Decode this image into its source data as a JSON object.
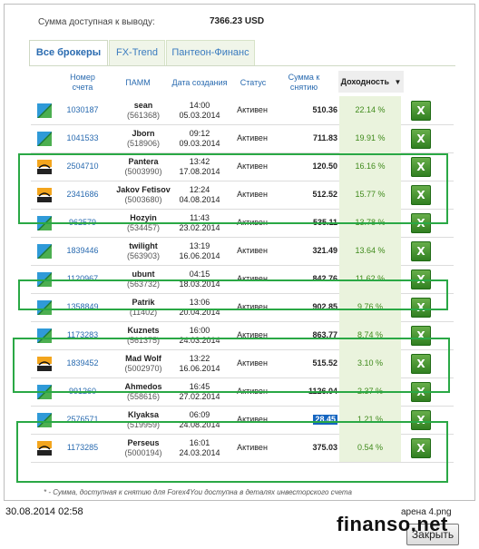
{
  "summary": {
    "label": "Сумма доступная к выводу:",
    "value": "7366.23 USD"
  },
  "tabs": [
    "Все брокеры",
    "FX-Trend",
    "Пантеон-Финанс"
  ],
  "headers": {
    "account": "Номер счета",
    "pamm": "ПАММ",
    "created": "Дата создания",
    "status": "Статус",
    "amount": "Сумма к снятию",
    "return": "Доходность"
  },
  "rows": [
    {
      "logo": "fx",
      "account": "1030187",
      "name": "sean",
      "id": "(561368)",
      "time": "14:00",
      "date": "05.03.2014",
      "status": "Активен",
      "amount": "510.36",
      "currency": "USD",
      "return": "22.14 %"
    },
    {
      "logo": "fx",
      "account": "1041533",
      "name": "Jborn",
      "id": "(518906)",
      "time": "09:12",
      "date": "09.03.2014",
      "status": "Активен",
      "amount": "711.83",
      "currency": "USD",
      "return": "19.91 %"
    },
    {
      "logo": "pf",
      "account": "2504710",
      "name": "Pantera",
      "id": "(5003990)",
      "time": "13:42",
      "date": "17.08.2014",
      "status": "Активен",
      "amount": "120.50",
      "currency": "USD",
      "return": "16.16 %"
    },
    {
      "logo": "pf",
      "account": "2341686",
      "name": "Jakov Fetisov",
      "id": "(5003680)",
      "time": "12:24",
      "date": "04.08.2014",
      "status": "Активен",
      "amount": "512.52",
      "currency": "USD",
      "return": "15.77 %"
    },
    {
      "logo": "fx",
      "account": "962579",
      "name": "Hozyin",
      "id": "(534457)",
      "time": "11:43",
      "date": "23.02.2014",
      "status": "Активен",
      "amount": "535.11",
      "currency": "USD",
      "return": "13.78 %"
    },
    {
      "logo": "fx",
      "account": "1839446",
      "name": "twilight",
      "id": "(563903)",
      "time": "13:19",
      "date": "16.06.2014",
      "status": "Активен",
      "amount": "321.49",
      "currency": "USD",
      "return": "13.64 %"
    },
    {
      "logo": "fx",
      "account": "1120967",
      "name": "ubunt",
      "id": "(563732)",
      "time": "04:15",
      "date": "18.03.2014",
      "status": "Активен",
      "amount": "842.76",
      "currency": "USD",
      "return": "11.62 %"
    },
    {
      "logo": "fx",
      "account": "1358849",
      "name": "Patrik",
      "id": "(11402)",
      "time": "13:06",
      "date": "20.04.2014",
      "status": "Активен",
      "amount": "902.85",
      "currency": "USD",
      "return": "9.76 %"
    },
    {
      "logo": "fx",
      "account": "1173283",
      "name": "Kuznets",
      "id": "(561375)",
      "time": "16:00",
      "date": "24.03.2014",
      "status": "Активен",
      "amount": "863.77",
      "currency": "USD",
      "return": "8.74 %"
    },
    {
      "logo": "pf",
      "account": "1839452",
      "name": "Mad Wolf",
      "id": "(5002970)",
      "time": "13:22",
      "date": "16.06.2014",
      "status": "Активен",
      "amount": "515.52",
      "currency": "USD",
      "return": "3.10 %"
    },
    {
      "logo": "fx",
      "account": "991260",
      "name": "Ahmedos",
      "id": "(558616)",
      "time": "16:45",
      "date": "27.02.2014",
      "status": "Активен",
      "amount": "1126.04",
      "currency": "USD",
      "return": "2.37 %"
    },
    {
      "logo": "fx",
      "account": "2576571",
      "name": "Klyaksa",
      "id": "(519959)",
      "time": "06:09",
      "date": "24.08.2014",
      "status": "Активен",
      "amount": "28.45",
      "currency": "USD",
      "return": "1.21 %"
    },
    {
      "logo": "pf",
      "account": "1173285",
      "name": "Perseus",
      "id": "(5000194)",
      "time": "16:01",
      "date": "24.03.2014",
      "status": "Активен",
      "amount": "375.03",
      "currency": "USD",
      "return": "0.54 %"
    }
  ],
  "note": "* - Сумма, доступная к снятию для Forex4You доступна в деталях инвесторского счета",
  "footer": {
    "timestamp": "30.08.2014 02:58",
    "filename": "арена 4.png",
    "close_label": "Закрыть",
    "watermark": "finanso.net"
  },
  "colors": {
    "highlight_box": "#2aa845",
    "link": "#2a6bb0",
    "return_text": "#3f8a1b"
  }
}
